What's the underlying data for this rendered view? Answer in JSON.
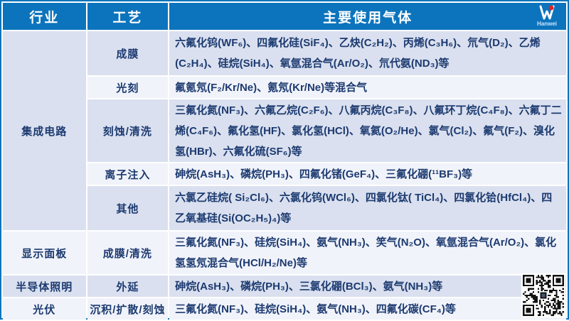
{
  "colors": {
    "header_blue": "#0c74bd",
    "row_dark": "#dae0ef",
    "row_light": "#f1f3fa",
    "text_navy": "#1c3a70"
  },
  "logo": {
    "text": "Hanwei"
  },
  "header": {
    "industry": "行业",
    "process": "工艺",
    "gases": "主要使用气体"
  },
  "rows": [
    {
      "industry": "集成电路",
      "industry_rowspan": 5,
      "process": "成膜",
      "gases": "六氟化钨(WF₆)、四氟化硅(SiF₄)、乙炔(C₂H₂)、丙烯(C₃H₆)、氘气(D₂)、乙烯(C₂H₄)、硅烷(SiH₄)、氧氩混合气(Ar/O₂)、氘代氨(ND₃)等"
    },
    {
      "process": "光刻",
      "gases": "氟氪氖(F₂/Kr/Ne)、氪氖(Kr/Ne)等混合气"
    },
    {
      "process": "刻蚀/清洗",
      "gases": "三氟化氮(NF₃)、六氟乙烷(C₂F₆)、八氟丙烷(C₃F₈)、八氟环丁烷(C₄F₈)、六氟丁二烯(C₄F₆)、氟化氢(HF)、氯化氢(HCl)、氧氦(O₂/He)、氯气(Cl₂)、氟气(F₂)、溴化氢(HBr)、六氟化硫(SF₆)等"
    },
    {
      "process": "离子注入",
      "gases": "砷烷(AsH₃)、磷烷(PH₃)、四氟化锗(GeF₄)、三氟化硼(¹¹BF₃)等"
    },
    {
      "process": "其他",
      "gases": "六氯乙硅烷( Si₂Cl₆)、六氯化钨(WCl₆)、四氯化钛( TiCl₄)、四氯化铪(HfCl₄)、四乙氧基硅(Si(OC₂H₅)₄)等"
    },
    {
      "industry": "显示面板",
      "industry_rowspan": 1,
      "process": "成膜/清洗",
      "gases": "三氟化氮(NF₃)、硅烷(SiH₄)、氨气(NH₃)、笑气(N₂O)、氧氩混合气(Ar/O₂)、氯化氢氢氖混合气(HCl/H₂/Ne)等"
    },
    {
      "industry": "半导体照明",
      "industry_rowspan": 1,
      "process": "外延",
      "gases": "砷烷(AsH₃)、磷烷(PH₃)、三氯化硼(BCl₃)、氨气(NH₃)等"
    },
    {
      "industry": "光伏",
      "industry_rowspan": 1,
      "process": "沉积/扩散/刻蚀",
      "gases": "三氟化氮(NF₃)、硅烷(SiH₄)、氨气(NH₃)、四氟化碳(CF₄)等"
    }
  ]
}
